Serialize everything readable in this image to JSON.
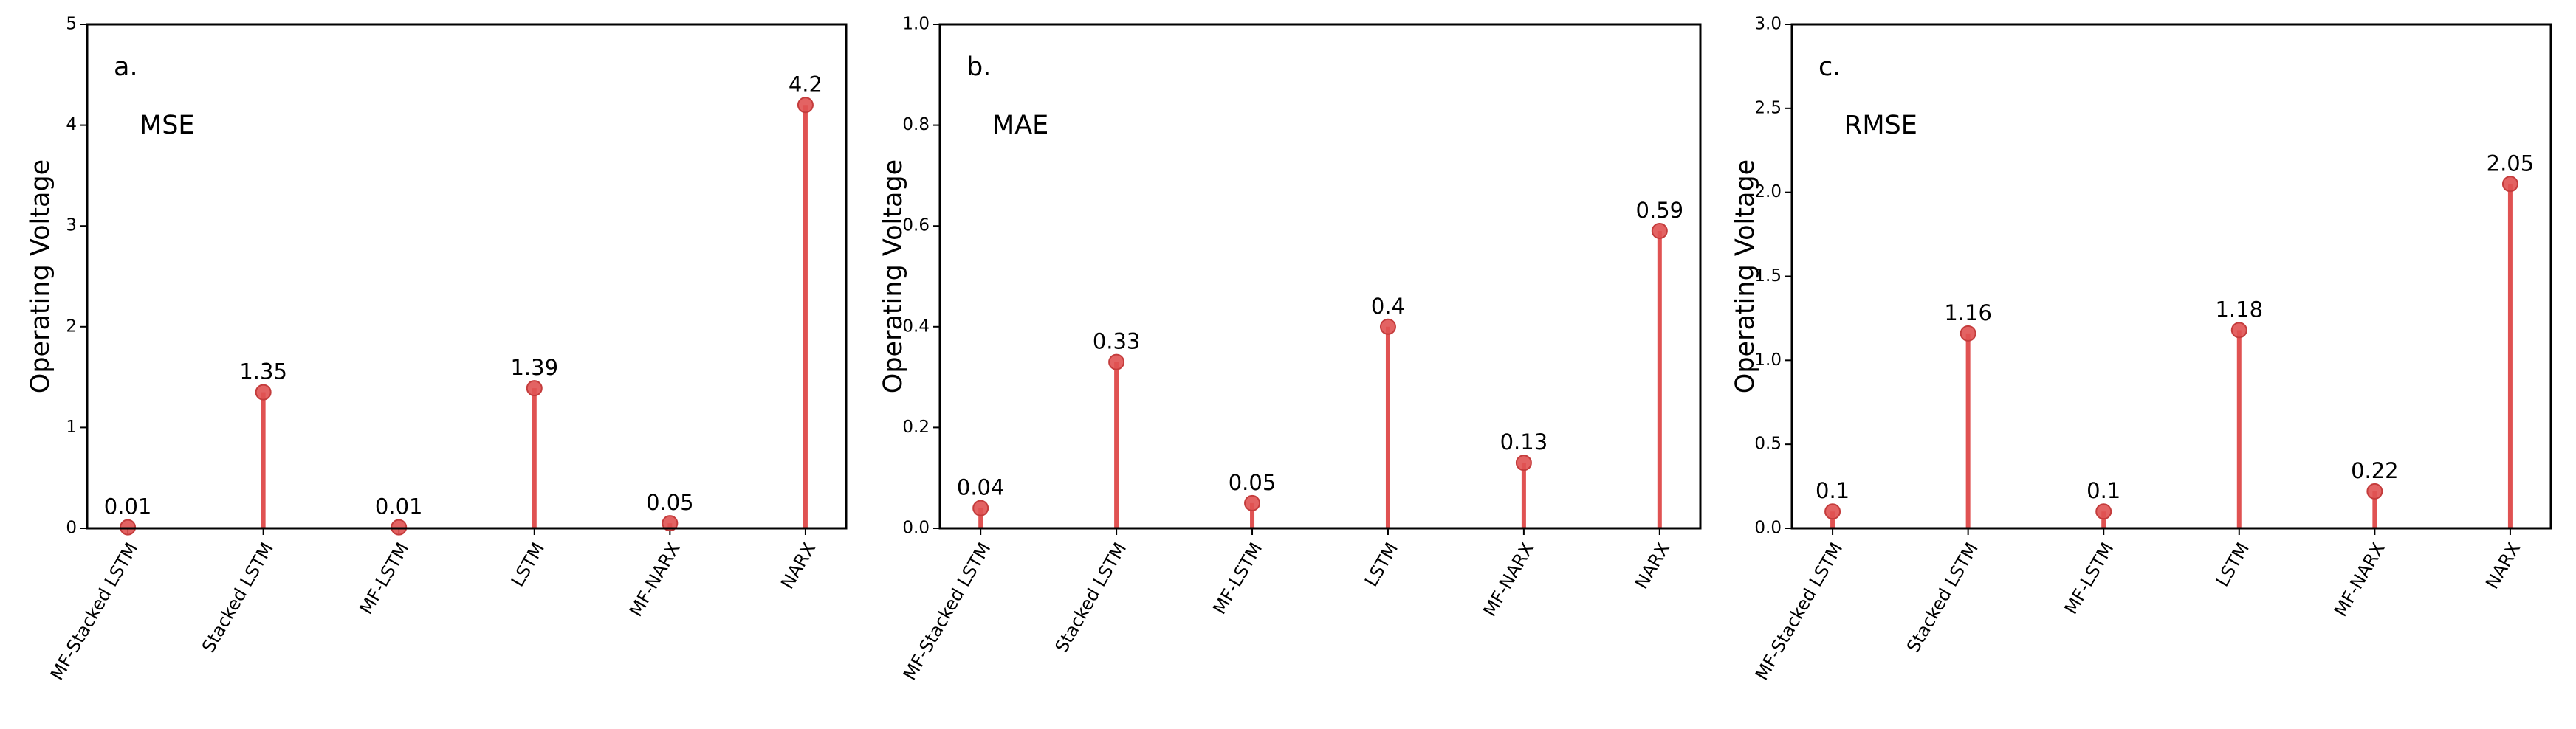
{
  "chart_data": [
    {
      "type": "lollipop",
      "panel_label": "a.",
      "metric": "MSE",
      "ylabel": "Operating Voltage",
      "categories": [
        "MF-Stacked LSTM",
        "Stacked LSTM",
        "MF-LSTM",
        "LSTM",
        "MF-NARX",
        "NARX"
      ],
      "values": [
        0.01,
        1.35,
        0.01,
        1.39,
        0.05,
        4.2
      ],
      "color": "#e05252",
      "ylim": [
        0,
        5
      ],
      "yticks": [
        0,
        1,
        2,
        3,
        4,
        5
      ]
    },
    {
      "type": "lollipop",
      "panel_label": "b.",
      "metric": "MAE",
      "ylabel": "Operating Voltage",
      "categories": [
        "MF-Stacked LSTM",
        "Stacked LSTM",
        "MF-LSTM",
        "LSTM",
        "MF-NARX",
        "NARX"
      ],
      "values": [
        0.04,
        0.33,
        0.05,
        0.4,
        0.13,
        0.59
      ],
      "color": "#e05252",
      "ylim": [
        0,
        1
      ],
      "yticks": [
        {
          "value": 0,
          "label": "0.0"
        },
        0.2,
        0.4,
        0.6,
        0.8,
        {
          "value": 1,
          "label": "1.0"
        }
      ]
    },
    {
      "type": "lollipop",
      "panel_label": "c.",
      "metric": "RMSE",
      "ylabel": "Operating Voltage",
      "categories": [
        "MF-Stacked LSTM",
        "Stacked LSTM",
        "MF-LSTM",
        "LSTM",
        "MF-NARX",
        "NARX"
      ],
      "values": [
        0.1,
        1.16,
        0.1,
        1.18,
        0.22,
        2.05
      ],
      "color": "#e05252",
      "ylim": [
        0,
        3
      ],
      "yticks": [
        {
          "value": 0,
          "label": "0.0"
        },
        0.5,
        {
          "value": 1,
          "label": "1.0"
        },
        1.5,
        {
          "value": 2,
          "label": "2.0"
        },
        2.5,
        {
          "value": 3,
          "label": "3.0"
        }
      ]
    }
  ]
}
